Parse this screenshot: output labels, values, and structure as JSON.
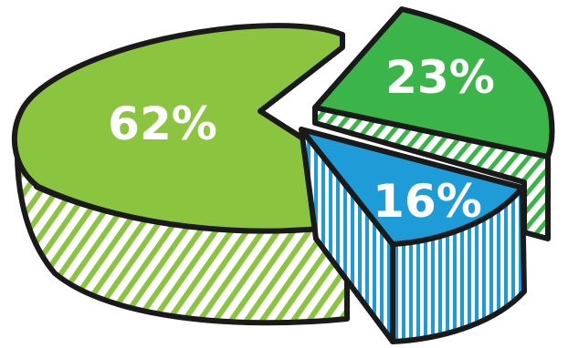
{
  "chart_data": {
    "type": "pie",
    "style": "hand-drawn 3D exploded pie with hatched sides",
    "slices": [
      {
        "label": "62%",
        "value": 62,
        "color": "#8BC53F",
        "side_color": "#8BC53F"
      },
      {
        "label": "23%",
        "value": 23,
        "color": "#3BB54A",
        "side_color": "#3BB54A"
      },
      {
        "label": "16%",
        "value": 16,
        "color": "#1E9CD7",
        "side_color": "#1E9CD7"
      }
    ],
    "outline_color": "#1a1a1a",
    "legend": "none"
  }
}
